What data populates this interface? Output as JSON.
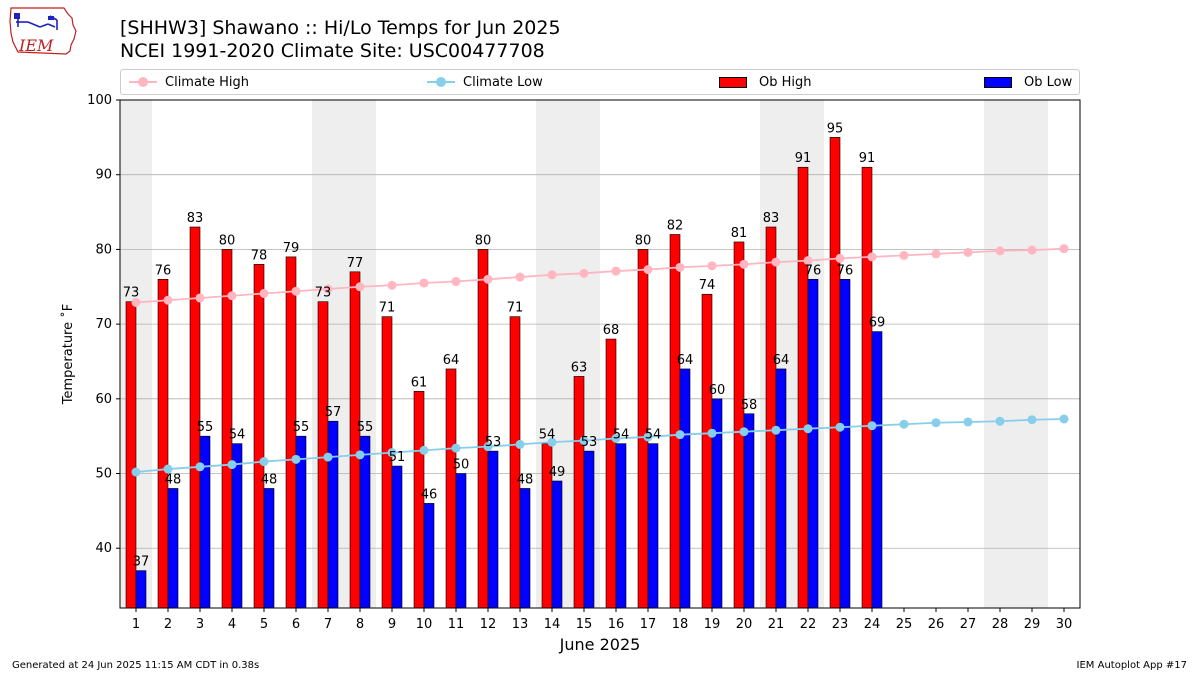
{
  "header": {
    "logo_text": "IEM",
    "title_line1": "[SHHW3] Shawano :: Hi/Lo Temps for Jun 2025",
    "title_line2": "NCEI 1991-2020 Climate Site: USC00477708"
  },
  "legend": {
    "climate_high": "Climate High",
    "climate_low": "Climate Low",
    "ob_high": "Ob High",
    "ob_low": "Ob Low"
  },
  "footer": {
    "generated": "Generated at 24 Jun 2025 11:15 AM CDT in 0.38s",
    "app": "IEM Autoplot App #17"
  },
  "colors": {
    "ob_high": "#ff0000",
    "ob_low": "#0000ff",
    "climate_high": "#ffb6c1",
    "climate_low": "#87ceeb",
    "weekend_band": "#eeeeee",
    "grid": "#b0b0b0"
  },
  "chart_data": {
    "type": "bar",
    "title": "[SHHW3] Shawano :: Hi/Lo Temps for Jun 2025",
    "subtitle": "NCEI 1991-2020 Climate Site: USC00477708",
    "xlabel": "June 2025",
    "ylabel": "Temperature ˚F",
    "ylim": [
      32,
      100
    ],
    "yticks": [
      40,
      50,
      60,
      70,
      80,
      90,
      100
    ],
    "grid": true,
    "legend_position": "top",
    "categories": [
      "1",
      "2",
      "3",
      "4",
      "5",
      "6",
      "7",
      "8",
      "9",
      "10",
      "11",
      "12",
      "13",
      "14",
      "15",
      "16",
      "17",
      "18",
      "19",
      "20",
      "21",
      "22",
      "23",
      "24",
      "25",
      "26",
      "27",
      "28",
      "29",
      "30"
    ],
    "weekend_days": [
      1,
      7,
      8,
      14,
      15,
      21,
      22,
      28,
      29
    ],
    "series": [
      {
        "name": "Ob High",
        "kind": "bar",
        "values": [
          73,
          76,
          83,
          80,
          78,
          79,
          73,
          77,
          71,
          61,
          64,
          80,
          71,
          54,
          63,
          68,
          80,
          82,
          74,
          81,
          83,
          91,
          95,
          91,
          null,
          null,
          null,
          null,
          null,
          null
        ]
      },
      {
        "name": "Ob Low",
        "kind": "bar",
        "values": [
          37,
          48,
          55,
          54,
          48,
          55,
          57,
          55,
          51,
          46,
          50,
          53,
          48,
          49,
          53,
          54,
          54,
          64,
          60,
          58,
          64,
          76,
          76,
          69,
          null,
          null,
          null,
          null,
          null,
          null
        ]
      },
      {
        "name": "Climate High",
        "kind": "line",
        "values": [
          72.9,
          73.2,
          73.5,
          73.8,
          74.1,
          74.4,
          74.7,
          75.0,
          75.2,
          75.5,
          75.7,
          76.0,
          76.3,
          76.6,
          76.8,
          77.1,
          77.3,
          77.6,
          77.8,
          78.0,
          78.3,
          78.5,
          78.8,
          79.0,
          79.2,
          79.4,
          79.6,
          79.8,
          79.9,
          80.1
        ]
      },
      {
        "name": "Climate Low",
        "kind": "line",
        "values": [
          50.2,
          50.6,
          50.9,
          51.2,
          51.6,
          51.9,
          52.2,
          52.5,
          52.8,
          53.1,
          53.4,
          53.6,
          53.9,
          54.2,
          54.4,
          54.7,
          54.9,
          55.2,
          55.4,
          55.6,
          55.8,
          56.0,
          56.2,
          56.4,
          56.6,
          56.8,
          56.9,
          57.0,
          57.2,
          57.3
        ]
      }
    ]
  }
}
